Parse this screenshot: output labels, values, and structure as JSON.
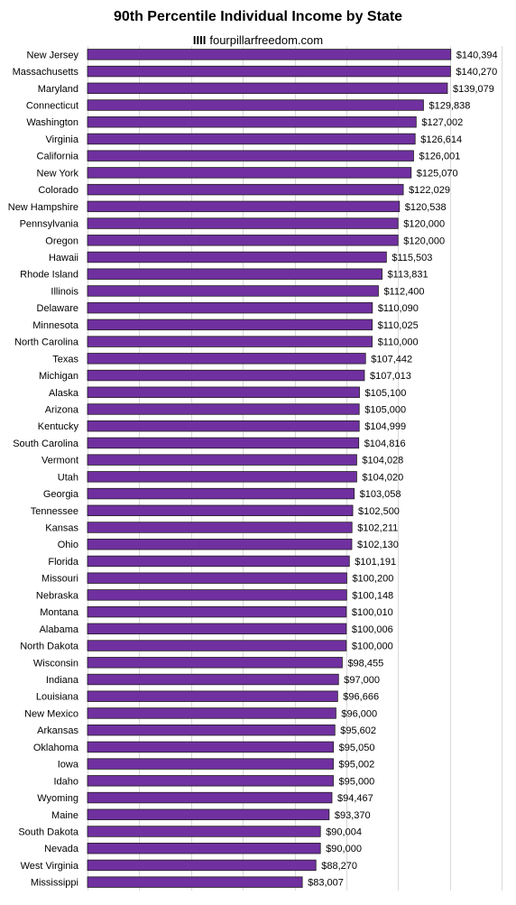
{
  "chart_data": {
    "type": "bar",
    "orientation": "horizontal",
    "title": "90th Percentile Individual Income by State",
    "subtitle": "fourpillarfreedom.com",
    "subtitle_mark": "IIII",
    "xlabel": "",
    "ylabel": "",
    "xlim": [
      0,
      160000
    ],
    "grid": true,
    "legend": "none",
    "bar_color": "#7030a0",
    "categories": [
      "New Jersey",
      "Massachusetts",
      "Maryland",
      "Connecticut",
      "Washington",
      "Virginia",
      "California",
      "New York",
      "Colorado",
      "New Hampshire",
      "Pennsylvania",
      "Oregon",
      "Hawaii",
      "Rhode Island",
      "Illinois",
      "Delaware",
      "Minnesota",
      "North Carolina",
      "Texas",
      "Michigan",
      "Alaska",
      "Arizona",
      "Kentucky",
      "South Carolina",
      "Vermont",
      "Utah",
      "Georgia",
      "Tennessee",
      "Kansas",
      "Ohio",
      "Florida",
      "Missouri",
      "Nebraska",
      "Montana",
      "Alabama",
      "North Dakota",
      "Wisconsin",
      "Indiana",
      "Louisiana",
      "New Mexico",
      "Arkansas",
      "Oklahoma",
      "Iowa",
      "Idaho",
      "Wyoming",
      "Maine",
      "South Dakota",
      "Nevada",
      "West Virginia",
      "Mississippi"
    ],
    "values": [
      140394,
      140270,
      139079,
      129838,
      127002,
      126614,
      126001,
      125070,
      122029,
      120538,
      120000,
      120000,
      115503,
      113831,
      112400,
      110090,
      110025,
      110000,
      107442,
      107013,
      105100,
      105000,
      104999,
      104816,
      104028,
      104020,
      103058,
      102500,
      102211,
      102130,
      101191,
      100200,
      100148,
      100010,
      100006,
      100000,
      98455,
      97000,
      96666,
      96000,
      95602,
      95050,
      95002,
      95000,
      94467,
      93370,
      90004,
      90000,
      88270,
      83007
    ],
    "value_labels": [
      "$140,394",
      "$140,270",
      "$139,079",
      "$129,838",
      "$127,002",
      "$126,614",
      "$126,001",
      "$125,070",
      "$122,029",
      "$120,538",
      "$120,000",
      "$120,000",
      "$115,503",
      "$113,831",
      "$112,400",
      "$110,090",
      "$110,025",
      "$110,000",
      "$107,442",
      "$107,013",
      "$105,100",
      "$105,000",
      "$104,999",
      "$104,816",
      "$104,028",
      "$104,020",
      "$103,058",
      "$102,500",
      "$102,211",
      "$102,130",
      "$101,191",
      "$100,200",
      "$100,148",
      "$100,010",
      "$100,006",
      "$100,000",
      "$98,455",
      "$97,000",
      "$96,666",
      "$96,000",
      "$95,602",
      "$95,050",
      "$95,002",
      "$95,000",
      "$94,467",
      "$93,370",
      "$90,004",
      "$90,000",
      "$88,270",
      "$83,007"
    ]
  }
}
